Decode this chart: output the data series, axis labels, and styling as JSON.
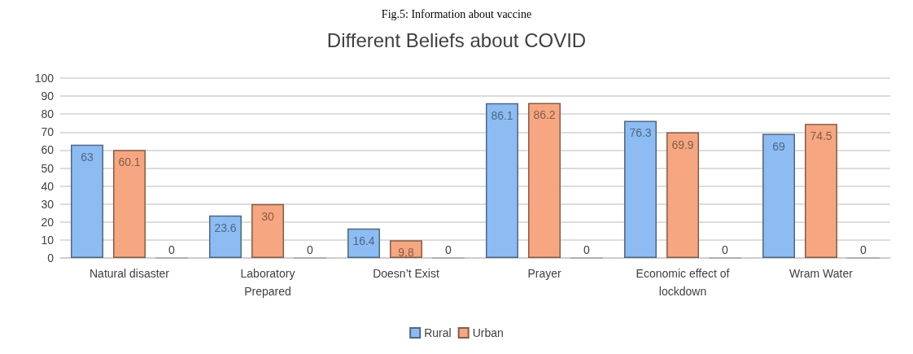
{
  "chart_data": {
    "type": "bar",
    "title": "Different Beliefs about COVID",
    "annotations": [
      "Fig.5: Information about vaccine"
    ],
    "categories": [
      "Natural disaster",
      "Laboratory\nPrepared",
      "Doesn’t Exist",
      "Prayer",
      "Economic effect of\nlockdown",
      "Wram Water"
    ],
    "series": [
      {
        "name": "Rural",
        "color": "#8dbcf2",
        "values": [
          63,
          23.6,
          16.4,
          86.1,
          76.3,
          69
        ]
      },
      {
        "name": "Urban",
        "color": "#f6a781",
        "values": [
          60.1,
          30,
          9.8,
          86.2,
          69.9,
          74.5
        ]
      },
      {
        "color": "#a5a5a5",
        "values": [
          0,
          0,
          0,
          0,
          0,
          0
        ]
      }
    ],
    "ylim": [
      0,
      100
    ],
    "yticks": [
      0,
      10,
      20,
      30,
      40,
      50,
      60,
      70,
      80,
      90,
      100
    ],
    "grid": "y",
    "legend": "bottom",
    "data_labels": true
  }
}
